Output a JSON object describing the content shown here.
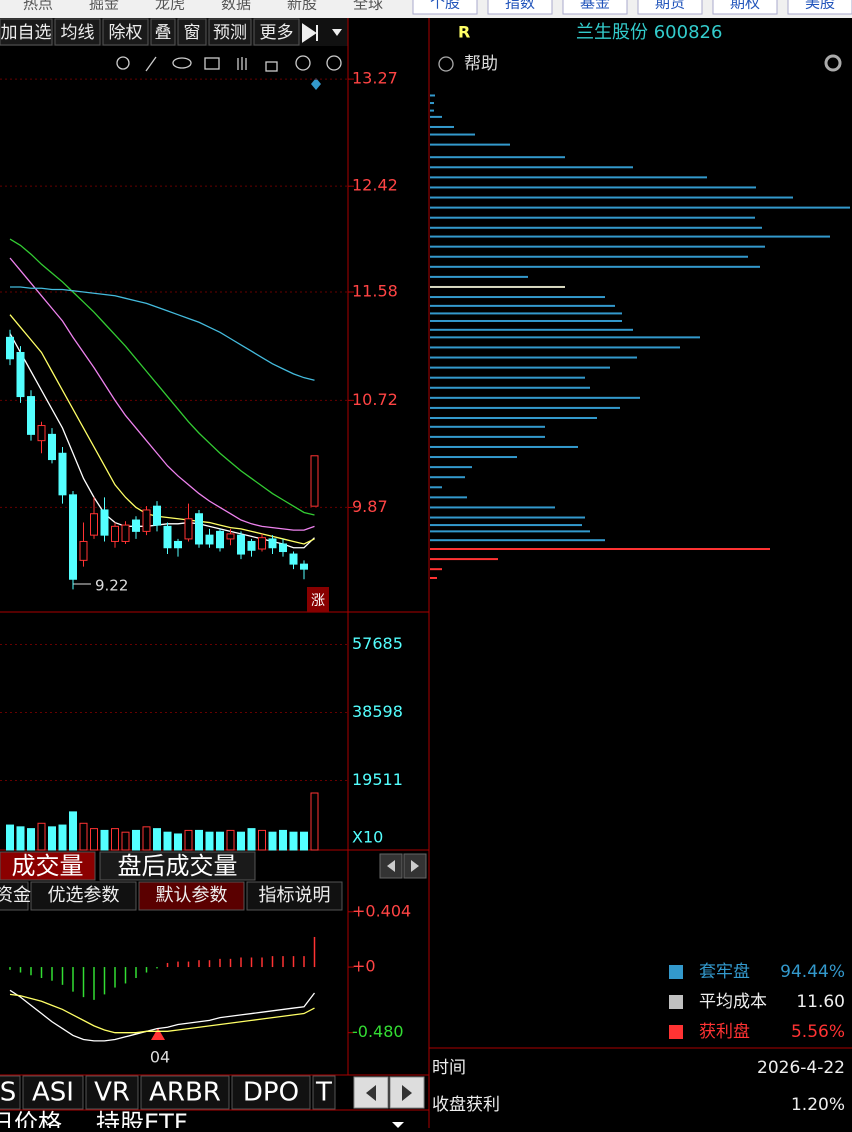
{
  "nav": {
    "left": [
      "热点",
      "掘金",
      "龙虎",
      "数据",
      "新股",
      "全球"
    ],
    "buttons": [
      "个股",
      "指数",
      "基金",
      "期货",
      "期权",
      "美股"
    ]
  },
  "toolbar": [
    "加自选",
    "均线",
    "除权",
    "叠",
    "窗",
    "预测",
    "更多"
  ],
  "header": {
    "mark": "R",
    "stock": "兰生股份 600826",
    "help": "帮助"
  },
  "price_chart": {
    "type": "candlestick",
    "ylim": [
      9.04,
      13.755
    ],
    "yticks": [
      13.27,
      12.42,
      11.58,
      10.72,
      9.87
    ],
    "low_label": "9.22",
    "limit_up": "涨",
    "candles": [
      {
        "o": 11.22,
        "c": 11.05,
        "h": 11.28,
        "l": 11.0
      },
      {
        "o": 11.1,
        "c": 10.75,
        "h": 11.15,
        "l": 10.7
      },
      {
        "o": 10.75,
        "c": 10.45,
        "h": 10.8,
        "l": 10.4
      },
      {
        "o": 10.4,
        "c": 10.52,
        "h": 10.55,
        "l": 10.3
      },
      {
        "o": 10.45,
        "c": 10.25,
        "h": 10.5,
        "l": 10.22
      },
      {
        "o": 10.3,
        "c": 9.97,
        "h": 10.35,
        "l": 9.9
      },
      {
        "o": 9.97,
        "c": 9.3,
        "h": 10.0,
        "l": 9.22
      },
      {
        "o": 9.45,
        "c": 9.6,
        "h": 9.75,
        "l": 9.4
      },
      {
        "o": 9.65,
        "c": 9.82,
        "h": 9.95,
        "l": 9.62
      },
      {
        "o": 9.85,
        "c": 9.65,
        "h": 9.95,
        "l": 9.6
      },
      {
        "o": 9.6,
        "c": 9.72,
        "h": 9.75,
        "l": 9.55
      },
      {
        "o": 9.6,
        "c": 9.73,
        "h": 9.76,
        "l": 9.58
      },
      {
        "o": 9.77,
        "c": 9.68,
        "h": 9.8,
        "l": 9.62
      },
      {
        "o": 9.68,
        "c": 9.85,
        "h": 9.88,
        "l": 9.65
      },
      {
        "o": 9.88,
        "c": 9.73,
        "h": 9.92,
        "l": 9.68
      },
      {
        "o": 9.72,
        "c": 9.55,
        "h": 9.75,
        "l": 9.5
      },
      {
        "o": 9.6,
        "c": 9.55,
        "h": 9.62,
        "l": 9.48
      },
      {
        "o": 9.62,
        "c": 9.78,
        "h": 9.9,
        "l": 9.6
      },
      {
        "o": 9.82,
        "c": 9.58,
        "h": 9.85,
        "l": 9.55
      },
      {
        "o": 9.65,
        "c": 9.58,
        "h": 9.7,
        "l": 9.55
      },
      {
        "o": 9.68,
        "c": 9.55,
        "h": 9.7,
        "l": 9.52
      },
      {
        "o": 9.62,
        "c": 9.66,
        "h": 9.7,
        "l": 9.57
      },
      {
        "o": 9.65,
        "c": 9.5,
        "h": 9.68,
        "l": 9.46
      },
      {
        "o": 9.6,
        "c": 9.53,
        "h": 9.62,
        "l": 9.48
      },
      {
        "o": 9.54,
        "c": 9.63,
        "h": 9.66,
        "l": 9.52
      },
      {
        "o": 9.62,
        "c": 9.55,
        "h": 9.65,
        "l": 9.5
      },
      {
        "o": 9.58,
        "c": 9.52,
        "h": 9.62,
        "l": 9.48
      },
      {
        "o": 9.5,
        "c": 9.42,
        "h": 9.52,
        "l": 9.38
      },
      {
        "o": 9.42,
        "c": 9.38,
        "h": 9.45,
        "l": 9.3
      },
      {
        "o": 9.88,
        "c": 10.28,
        "h": 10.28,
        "l": 9.88
      }
    ],
    "up_color": "#ff3333",
    "down_color": "#54ffff",
    "lines": [
      {
        "color": "#ffffff",
        "values": [
          11.25,
          11.1,
          10.95,
          10.8,
          10.65,
          10.5,
          10.3,
          10.1,
          9.95,
          9.82,
          9.75,
          9.72,
          9.72,
          9.72,
          9.73,
          9.74,
          9.74,
          9.75,
          9.74,
          9.72,
          9.7,
          9.68,
          9.66,
          9.64,
          9.62,
          9.6,
          9.58,
          9.55,
          9.55,
          9.63
        ]
      },
      {
        "color": "#ffff66",
        "values": [
          11.4,
          11.3,
          11.2,
          11.1,
          10.95,
          10.8,
          10.65,
          10.5,
          10.35,
          10.2,
          10.05,
          9.95,
          9.87,
          9.82,
          9.8,
          9.79,
          9.78,
          9.77,
          9.76,
          9.75,
          9.73,
          9.71,
          9.7,
          9.68,
          9.66,
          9.64,
          9.62,
          9.6,
          9.58,
          9.62
        ]
      },
      {
        "color": "#ee82ee",
        "values": [
          11.85,
          11.75,
          11.65,
          11.55,
          11.45,
          11.35,
          11.22,
          11.1,
          10.98,
          10.85,
          10.72,
          10.6,
          10.5,
          10.4,
          10.3,
          10.2,
          10.12,
          10.05,
          9.98,
          9.92,
          9.87,
          9.82,
          9.77,
          9.74,
          9.72,
          9.71,
          9.7,
          9.69,
          9.69,
          9.72
        ]
      },
      {
        "color": "#33cc33",
        "values": [
          12.0,
          11.95,
          11.88,
          11.8,
          11.73,
          11.66,
          11.58,
          11.5,
          11.42,
          11.33,
          11.24,
          11.15,
          11.05,
          10.95,
          10.85,
          10.75,
          10.65,
          10.55,
          10.46,
          10.38,
          10.3,
          10.23,
          10.16,
          10.1,
          10.04,
          9.98,
          9.93,
          9.88,
          9.83,
          9.81
        ]
      },
      {
        "color": "#44bbdd",
        "values": [
          11.62,
          11.62,
          11.61,
          11.61,
          11.6,
          11.6,
          11.59,
          11.58,
          11.57,
          11.56,
          11.55,
          11.53,
          11.51,
          11.49,
          11.46,
          11.43,
          11.4,
          11.37,
          11.34,
          11.3,
          11.26,
          11.21,
          11.16,
          11.11,
          11.06,
          11.01,
          10.97,
          10.93,
          10.9,
          10.88
        ]
      }
    ]
  },
  "volume_chart": {
    "type": "bar",
    "ylim": [
      0,
      65400
    ],
    "yticks": [
      57685,
      38598,
      19511
    ],
    "unit_label": "X10",
    "values": [
      7000,
      6500,
      6000,
      7500,
      6500,
      7000,
      10700,
      7500,
      6000,
      5500,
      6000,
      5000,
      5500,
      6500,
      6000,
      5000,
      4500,
      5500,
      5500,
      5000,
      5000,
      5500,
      5000,
      6000,
      5500,
      5000,
      5500,
      5000,
      5000,
      16000
    ],
    "tabs": [
      "成交量",
      "盘后成交量"
    ]
  },
  "indicator_tabs": [
    "资金",
    "优选参数",
    "默认参数",
    "指标说明"
  ],
  "macd_chart": {
    "type": "macd",
    "ylim": [
      -0.57,
      0.6
    ],
    "yticks": [
      {
        "value": 0.404,
        "label": "+0.404"
      },
      {
        "value": 0,
        "label": "+0"
      },
      {
        "value": -0.48,
        "label": "-0.480"
      }
    ],
    "x_label": "04",
    "values": [
      -0.02,
      -0.04,
      -0.06,
      -0.08,
      -0.1,
      -0.13,
      -0.18,
      -0.22,
      -0.24,
      -0.2,
      -0.15,
      -0.12,
      -0.08,
      -0.04,
      -0.01,
      0.03,
      0.04,
      0.04,
      0.05,
      0.05,
      0.06,
      0.06,
      0.07,
      0.07,
      0.07,
      0.08,
      0.08,
      0.08,
      0.08,
      0.22
    ],
    "lines": [
      {
        "color": "#ffffff",
        "values": [
          -0.17,
          -0.22,
          -0.28,
          -0.34,
          -0.4,
          -0.45,
          -0.5,
          -0.53,
          -0.54,
          -0.54,
          -0.53,
          -0.51,
          -0.49,
          -0.47,
          -0.45,
          -0.44,
          -0.42,
          -0.41,
          -0.4,
          -0.39,
          -0.37,
          -0.36,
          -0.35,
          -0.34,
          -0.33,
          -0.32,
          -0.31,
          -0.3,
          -0.29,
          -0.19
        ]
      },
      {
        "color": "#ffff66",
        "values": [
          -0.2,
          -0.21,
          -0.23,
          -0.25,
          -0.28,
          -0.31,
          -0.35,
          -0.39,
          -0.43,
          -0.46,
          -0.48,
          -0.48,
          -0.48,
          -0.47,
          -0.47,
          -0.47,
          -0.46,
          -0.45,
          -0.44,
          -0.43,
          -0.42,
          -0.41,
          -0.4,
          -0.39,
          -0.38,
          -0.37,
          -0.36,
          -0.35,
          -0.34,
          -0.3
        ]
      }
    ]
  },
  "bottom_tabs": [
    "S",
    "ASI",
    "VR",
    "ARBR",
    "DPO",
    "T"
  ],
  "bottom_row": [
    "日价格",
    "持股ETF"
  ],
  "chip_chart": {
    "type": "hbar",
    "xlim": [
      0,
      422
    ],
    "prices": [
      13.14,
      13.08,
      13.02,
      12.97,
      12.89,
      12.83,
      12.75,
      12.65,
      12.57,
      12.49,
      12.41,
      12.33,
      12.25,
      12.17,
      12.09,
      12.02,
      11.94,
      11.86,
      11.78,
      11.7,
      11.62,
      11.54,
      11.47,
      11.41,
      11.35,
      11.28,
      11.22,
      11.14,
      11.06,
      10.98,
      10.9,
      10.82,
      10.74,
      10.66,
      10.58,
      10.51,
      10.43,
      10.35,
      10.27,
      10.19,
      10.11,
      10.03,
      9.95,
      9.87,
      9.79,
      9.73,
      9.68,
      9.61,
      9.54,
      9.46,
      9.38,
      9.31
    ],
    "values": [
      5,
      4,
      4,
      12,
      24,
      45,
      80,
      135,
      203,
      277,
      326,
      363,
      420,
      325,
      332,
      400,
      335,
      318,
      330,
      98,
      135,
      175,
      185,
      192,
      192,
      203,
      270,
      250,
      207,
      180,
      155,
      160,
      210,
      190,
      167,
      115,
      115,
      148,
      87,
      42,
      35,
      12,
      37,
      125,
      155,
      152,
      160,
      175,
      340,
      68,
      12,
      7
    ],
    "colors": [
      "#3399cc",
      "#3399cc",
      "#3399cc",
      "#3399cc",
      "#3399cc",
      "#3399cc",
      "#3399cc",
      "#3399cc",
      "#3399cc",
      "#3399cc",
      "#3399cc",
      "#3399cc",
      "#3399cc",
      "#3399cc",
      "#3399cc",
      "#3399cc",
      "#3399cc",
      "#3399cc",
      "#3399cc",
      "#3399cc",
      "#d8d8c0",
      "#3399cc",
      "#3399cc",
      "#3399cc",
      "#3399cc",
      "#3399cc",
      "#3399cc",
      "#3399cc",
      "#3399cc",
      "#3399cc",
      "#3399cc",
      "#3399cc",
      "#3399cc",
      "#3399cc",
      "#3399cc",
      "#3399cc",
      "#3399cc",
      "#3399cc",
      "#3399cc",
      "#3399cc",
      "#3399cc",
      "#3399cc",
      "#3399cc",
      "#3399cc",
      "#3399cc",
      "#3399cc",
      "#3399cc",
      "#3399cc",
      "#ff3333",
      "#ff3333",
      "#ff3333",
      "#ff3333"
    ],
    "legend": [
      {
        "color": "#3399cc",
        "name": "套牢盘",
        "value": "94.44%"
      },
      {
        "color": "#c0c0c0",
        "name": "平均成本",
        "value": "11.60"
      },
      {
        "color": "#ff3333",
        "name": "获利盘",
        "value": "5.56%"
      }
    ]
  },
  "info": [
    {
      "label": "时间",
      "value": "2026-4-22"
    },
    {
      "label": "收盘获利",
      "value": "1.20%"
    }
  ]
}
